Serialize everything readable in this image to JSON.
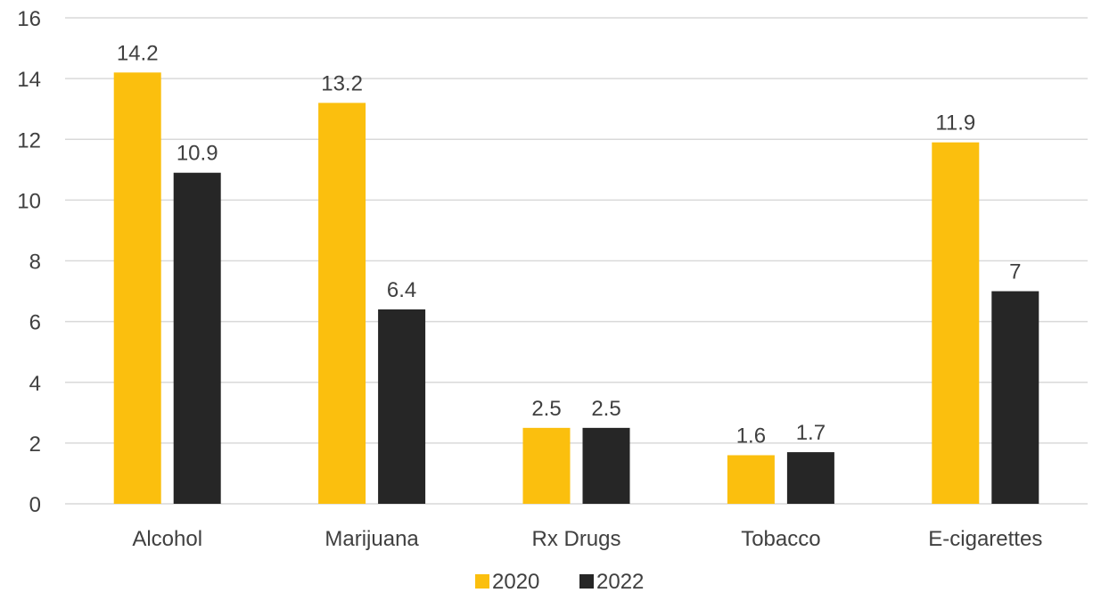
{
  "chart_data": {
    "type": "bar",
    "categories": [
      "Alcohol",
      "Marijuana",
      "Rx Drugs",
      "Tobacco",
      "E-cigarettes"
    ],
    "series": [
      {
        "name": "2020",
        "values": [
          14.2,
          13.2,
          2.5,
          1.6,
          11.9
        ],
        "color": "#fbbf0e"
      },
      {
        "name": "2022",
        "values": [
          10.9,
          6.4,
          2.5,
          1.7,
          7
        ],
        "color": "#262626"
      }
    ],
    "data_labels": [
      [
        "14.2",
        "13.2",
        "2.5",
        "1.6",
        "11.9"
      ],
      [
        "10.9",
        "6.4",
        "2.5",
        "1.7",
        "7"
      ]
    ],
    "y_ticks": [
      "0",
      "2",
      "4",
      "6",
      "8",
      "10",
      "12",
      "14",
      "16"
    ],
    "ylim": [
      0,
      16
    ],
    "grid": true,
    "legend_position": "bottom"
  }
}
